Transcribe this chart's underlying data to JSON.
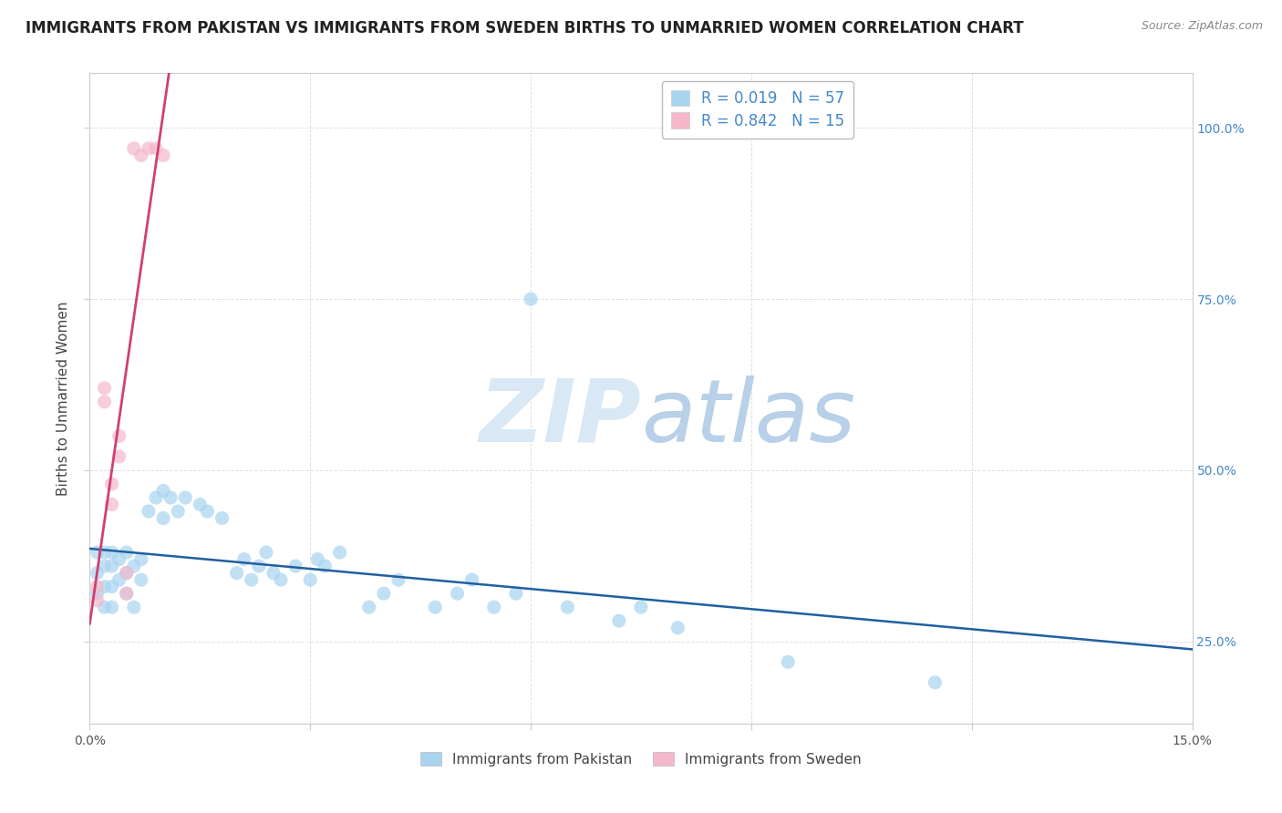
{
  "title": "IMMIGRANTS FROM PAKISTAN VS IMMIGRANTS FROM SWEDEN BIRTHS TO UNMARRIED WOMEN CORRELATION CHART",
  "source": "Source: ZipAtlas.com",
  "ylabel": "Births to Unmarried Women",
  "xlabel_pakistan": "Immigrants from Pakistan",
  "xlabel_sweden": "Immigrants from Sweden",
  "R_pakistan": 0.019,
  "N_pakistan": 57,
  "R_sweden": 0.842,
  "N_sweden": 15,
  "color_pakistan": "#a8d4f0",
  "color_sweden": "#f5b8ca",
  "color_pakistan_line": "#2060a0",
  "color_sweden_line": "#d04070",
  "xlim": [
    0.0,
    0.15
  ],
  "ylim": [
    0.13,
    1.08
  ],
  "xtick_vals": [
    0.0,
    0.03,
    0.06,
    0.09,
    0.12,
    0.15
  ],
  "xtick_labels_show": [
    "0.0%",
    "",
    "",
    "",
    "",
    "15.0%"
  ],
  "ytick_vals": [
    0.25,
    0.5,
    0.75,
    1.0
  ],
  "ytick_labels_right": [
    "25.0%",
    "50.0%",
    "75.0%",
    "100.0%"
  ],
  "pakistan_x": [
    0.001,
    0.001,
    0.001,
    0.002,
    0.002,
    0.002,
    0.002,
    0.003,
    0.003,
    0.003,
    0.003,
    0.004,
    0.004,
    0.005,
    0.005,
    0.005,
    0.006,
    0.006,
    0.007,
    0.007,
    0.008,
    0.009,
    0.01,
    0.01,
    0.011,
    0.012,
    0.013,
    0.015,
    0.016,
    0.018,
    0.02,
    0.021,
    0.022,
    0.023,
    0.024,
    0.025,
    0.026,
    0.028,
    0.03,
    0.031,
    0.032,
    0.034,
    0.038,
    0.04,
    0.042,
    0.047,
    0.05,
    0.052,
    0.055,
    0.058,
    0.06,
    0.065,
    0.072,
    0.075,
    0.08,
    0.095,
    0.115
  ],
  "pakistan_y": [
    0.32,
    0.35,
    0.38,
    0.3,
    0.33,
    0.36,
    0.38,
    0.3,
    0.33,
    0.36,
    0.38,
    0.34,
    0.37,
    0.32,
    0.35,
    0.38,
    0.3,
    0.36,
    0.34,
    0.37,
    0.44,
    0.46,
    0.43,
    0.47,
    0.46,
    0.44,
    0.46,
    0.45,
    0.44,
    0.43,
    0.35,
    0.37,
    0.34,
    0.36,
    0.38,
    0.35,
    0.34,
    0.36,
    0.34,
    0.37,
    0.36,
    0.38,
    0.3,
    0.32,
    0.34,
    0.3,
    0.32,
    0.34,
    0.3,
    0.32,
    0.75,
    0.3,
    0.28,
    0.3,
    0.27,
    0.22,
    0.19
  ],
  "sweden_x": [
    0.001,
    0.001,
    0.002,
    0.002,
    0.003,
    0.003,
    0.004,
    0.004,
    0.005,
    0.005,
    0.006,
    0.007,
    0.008,
    0.009,
    0.01
  ],
  "sweden_y": [
    0.31,
    0.33,
    0.6,
    0.62,
    0.45,
    0.48,
    0.52,
    0.55,
    0.32,
    0.35,
    0.97,
    0.96,
    0.97,
    0.97,
    0.96
  ],
  "watermark_zip": "ZIP",
  "watermark_atlas": "atlas",
  "background_color": "#ffffff",
  "grid_color": "#e0e0e0",
  "title_fontsize": 12,
  "axis_label_fontsize": 11,
  "tick_fontsize": 10,
  "legend_fontsize": 12
}
